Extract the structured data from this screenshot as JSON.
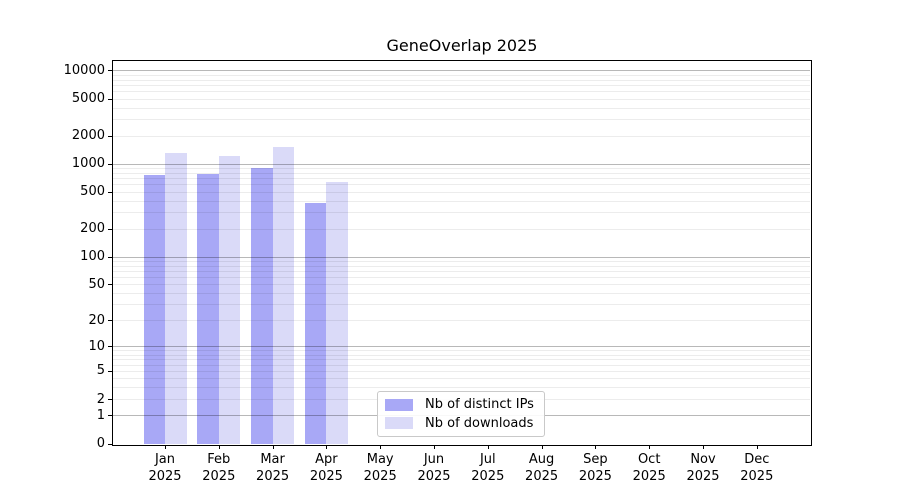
{
  "chart_data": {
    "type": "bar",
    "title": "GeneOverlap 2025",
    "categories": [
      "Jan",
      "Feb",
      "Mar",
      "Apr",
      "May",
      "Jun",
      "Jul",
      "Aug",
      "Sep",
      "Oct",
      "Nov",
      "Dec"
    ],
    "x_tick_year": "2025",
    "series": [
      {
        "name": "Nb of distinct IPs",
        "color": "#a8a8f6",
        "values": [
          750,
          780,
          910,
          380,
          null,
          null,
          null,
          null,
          null,
          null,
          null,
          null
        ]
      },
      {
        "name": "Nb of downloads",
        "color": "#dadaf8",
        "values": [
          1300,
          1200,
          1500,
          630,
          null,
          null,
          null,
          null,
          null,
          null,
          null,
          null
        ]
      }
    ],
    "y_ticks": [
      0,
      1,
      2,
      5,
      10,
      20,
      50,
      100,
      200,
      500,
      1000,
      2000,
      5000,
      10000
    ],
    "y_scale": "log1p",
    "ylim": [
      0,
      12000
    ],
    "grid": "both",
    "legend_position": "lower center",
    "colors": {
      "axis": "#000000",
      "major_grid": "#b8b8b8",
      "minor_grid": "#ebebeb",
      "background": "#ffffff"
    }
  }
}
